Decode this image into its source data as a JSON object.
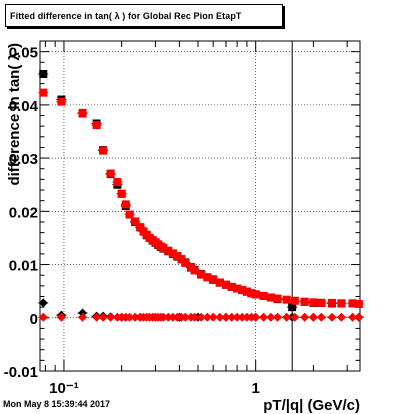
{
  "title": "Fitted difference in tan( λ ) for Global Rec Pion EtapT",
  "footer": "Mon May  8 15:39:44 2017",
  "chart_data": {
    "type": "scatter",
    "title": "Fitted difference in tan( λ ) for Global Rec Pion EtapT",
    "xlabel": "pT/|q| (GeV/c)",
    "ylabel": "difference in tan( λ )",
    "xscale": "log",
    "xlim": [
      0.075,
      3.5
    ],
    "ylim": [
      -0.01,
      0.052
    ],
    "grid": true,
    "x_tick_labels": [
      "10⁻¹",
      "1"
    ],
    "y_tick_labels": [
      "-0.01",
      "0",
      "0.01",
      "0.02",
      "0.03",
      "0.04",
      "0.05"
    ],
    "y_ticks": [
      -0.01,
      0,
      0.01,
      0.02,
      0.03,
      0.04,
      0.05
    ],
    "vertical_marker_x": 1.55,
    "series": [
      {
        "marker": "square",
        "color": "#000000",
        "points": [
          [
            0.078,
            0.0458
          ],
          [
            0.097,
            0.041
          ],
          [
            0.125,
            0.0384
          ],
          [
            0.148,
            0.0365
          ],
          [
            0.16,
            0.0315
          ],
          [
            0.175,
            0.027
          ],
          [
            0.19,
            0.025
          ],
          [
            0.2,
            0.0233
          ],
          [
            0.21,
            0.021
          ],
          [
            0.22,
            0.0194
          ],
          [
            0.235,
            0.018
          ],
          [
            0.25,
            0.017
          ],
          [
            0.26,
            0.0162
          ],
          [
            0.27,
            0.0155
          ],
          [
            0.28,
            0.015
          ],
          [
            0.29,
            0.0145
          ],
          [
            0.3,
            0.0141
          ],
          [
            0.31,
            0.0137
          ],
          [
            0.32,
            0.0133
          ],
          [
            0.33,
            0.013
          ],
          [
            0.35,
            0.0125
          ],
          [
            0.37,
            0.012
          ],
          [
            0.39,
            0.0115
          ],
          [
            0.41,
            0.011
          ],
          [
            0.43,
            0.0104
          ],
          [
            0.46,
            0.0095
          ],
          [
            0.48,
            0.009
          ],
          [
            0.52,
            0.0082
          ],
          [
            0.56,
            0.0076
          ],
          [
            0.6,
            0.0072
          ],
          [
            0.65,
            0.0066
          ],
          [
            0.7,
            0.0062
          ],
          [
            0.75,
            0.0058
          ],
          [
            0.8,
            0.0055
          ],
          [
            0.85,
            0.0052
          ],
          [
            0.9,
            0.0049
          ],
          [
            0.95,
            0.0046
          ],
          [
            1.0,
            0.0044
          ],
          [
            1.1,
            0.0041
          ],
          [
            1.2,
            0.0038
          ],
          [
            1.3,
            0.0035
          ],
          [
            1.55,
            0.002
          ],
          [
            1.8,
            0.003
          ],
          [
            2.0,
            0.0028
          ],
          [
            2.2,
            0.0028
          ],
          [
            2.5,
            0.0027
          ],
          [
            2.8,
            0.0027
          ],
          [
            3.2,
            0.0027
          ]
        ]
      },
      {
        "marker": "square",
        "color": "#ff0000",
        "points": [
          [
            0.078,
            0.0423
          ],
          [
            0.097,
            0.0406
          ],
          [
            0.125,
            0.0385
          ],
          [
            0.148,
            0.0362
          ],
          [
            0.16,
            0.0314
          ],
          [
            0.175,
            0.0271
          ],
          [
            0.19,
            0.0255
          ],
          [
            0.2,
            0.0233
          ],
          [
            0.21,
            0.0213
          ],
          [
            0.22,
            0.0194
          ],
          [
            0.235,
            0.0181
          ],
          [
            0.25,
            0.017
          ],
          [
            0.26,
            0.0162
          ],
          [
            0.27,
            0.0156
          ],
          [
            0.28,
            0.015
          ],
          [
            0.29,
            0.0146
          ],
          [
            0.3,
            0.0142
          ],
          [
            0.31,
            0.0138
          ],
          [
            0.32,
            0.0134
          ],
          [
            0.33,
            0.0131
          ],
          [
            0.35,
            0.0126
          ],
          [
            0.37,
            0.0121
          ],
          [
            0.39,
            0.0116
          ],
          [
            0.41,
            0.011
          ],
          [
            0.43,
            0.0103
          ],
          [
            0.46,
            0.0094
          ],
          [
            0.48,
            0.0089
          ],
          [
            0.52,
            0.0081
          ],
          [
            0.56,
            0.0076
          ],
          [
            0.6,
            0.0071
          ],
          [
            0.65,
            0.0066
          ],
          [
            0.7,
            0.0062
          ],
          [
            0.75,
            0.0058
          ],
          [
            0.8,
            0.0055
          ],
          [
            0.85,
            0.0052
          ],
          [
            0.9,
            0.0049
          ],
          [
            0.95,
            0.0046
          ],
          [
            1.0,
            0.0044
          ],
          [
            1.1,
            0.0041
          ],
          [
            1.2,
            0.0038
          ],
          [
            1.3,
            0.0036
          ],
          [
            1.45,
            0.0034
          ],
          [
            1.6,
            0.0032
          ],
          [
            1.8,
            0.003
          ],
          [
            2.0,
            0.0029
          ],
          [
            2.2,
            0.0028
          ],
          [
            2.5,
            0.0028
          ],
          [
            2.8,
            0.0027
          ],
          [
            3.2,
            0.0027
          ],
          [
            3.45,
            0.0026
          ]
        ]
      },
      {
        "marker": "diamond",
        "color": "#000000",
        "points": [
          [
            0.078,
            0.0028
          ],
          [
            0.097,
            0.0005
          ],
          [
            0.125,
            0.0009
          ],
          [
            0.148,
            0.0003
          ],
          [
            0.16,
            0.0003
          ],
          [
            0.175,
            0.0002
          ],
          [
            0.2,
            0.0001
          ],
          [
            0.25,
            0.0001
          ],
          [
            0.3,
            0.0001
          ],
          [
            0.4,
            0.0001
          ],
          [
            0.5,
            0.0001
          ],
          [
            0.7,
            0.0001
          ],
          [
            1.0,
            0.0001
          ],
          [
            1.55,
            0.0001
          ],
          [
            2.0,
            0.0001
          ],
          [
            3.45,
            0.0001
          ]
        ]
      },
      {
        "marker": "diamond",
        "color": "#ff0000",
        "points": [
          [
            0.078,
            0.0001
          ],
          [
            0.097,
            0.0001
          ],
          [
            0.125,
            0.0001
          ],
          [
            0.148,
            0.0001
          ],
          [
            0.16,
            0.0001
          ],
          [
            0.175,
            0.0001
          ],
          [
            0.19,
            0.0001
          ],
          [
            0.2,
            0.0001
          ],
          [
            0.21,
            0.0001
          ],
          [
            0.22,
            0.0001
          ],
          [
            0.235,
            0.0001
          ],
          [
            0.25,
            0.0001
          ],
          [
            0.26,
            0.0001
          ],
          [
            0.27,
            0.0001
          ],
          [
            0.28,
            0.0001
          ],
          [
            0.29,
            0.0001
          ],
          [
            0.3,
            0.0001
          ],
          [
            0.31,
            0.0001
          ],
          [
            0.32,
            0.0001
          ],
          [
            0.33,
            0.0001
          ],
          [
            0.35,
            0.0001
          ],
          [
            0.37,
            0.0001
          ],
          [
            0.39,
            0.0001
          ],
          [
            0.41,
            0.0001
          ],
          [
            0.43,
            0.0001
          ],
          [
            0.46,
            0.0001
          ],
          [
            0.48,
            0.0001
          ],
          [
            0.52,
            0.0001
          ],
          [
            0.56,
            0.0001
          ],
          [
            0.6,
            0.0001
          ],
          [
            0.65,
            0.0001
          ],
          [
            0.7,
            0.0001
          ],
          [
            0.75,
            0.0001
          ],
          [
            0.8,
            0.0001
          ],
          [
            0.85,
            0.0001
          ],
          [
            0.9,
            0.0001
          ],
          [
            0.95,
            0.0001
          ],
          [
            1.0,
            0.0001
          ],
          [
            1.1,
            0.0001
          ],
          [
            1.2,
            0.0001
          ],
          [
            1.3,
            0.0001
          ],
          [
            1.45,
            0.0001
          ],
          [
            1.6,
            0.0001
          ],
          [
            1.8,
            0.0001
          ],
          [
            2.0,
            0.0001
          ],
          [
            2.2,
            0.0001
          ],
          [
            2.5,
            0.0001
          ],
          [
            2.8,
            0.0001
          ],
          [
            3.2,
            0.0001
          ],
          [
            3.45,
            0.0001
          ]
        ]
      }
    ]
  }
}
